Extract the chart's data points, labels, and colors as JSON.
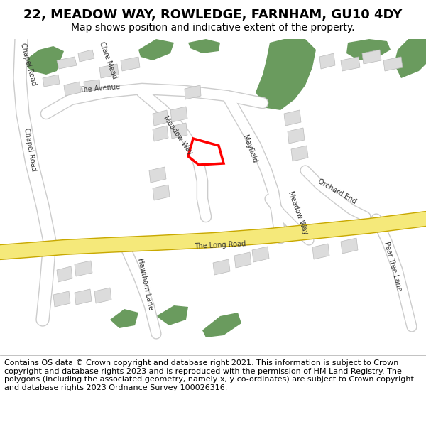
{
  "title": "22, MEADOW WAY, ROWLEDGE, FARNHAM, GU10 4DY",
  "subtitle": "Map shows position and indicative extent of the property.",
  "footer": "Contains OS data © Crown copyright and database right 2021. This information is subject to Crown copyright and database rights 2023 and is reproduced with the permission of HM Land Registry. The polygons (including the associated geometry, namely x, y co-ordinates) are subject to Crown copyright and database rights 2023 Ordnance Survey 100026316.",
  "bg_color": "#f2efe9",
  "road_color": "#ffffff",
  "road_edge_color": "#cccccc",
  "yellow_road_color": "#f5e97a",
  "yellow_road_edge_color": "#c8a800",
  "green_area_color": "#6a9b5e",
  "building_color": "#dcdcdc",
  "building_edge_color": "#bbbbbb",
  "plot_color": "#ffffff",
  "plot_edge_color": "#ff0000",
  "title_fontsize": 13,
  "subtitle_fontsize": 10,
  "footer_fontsize": 8
}
